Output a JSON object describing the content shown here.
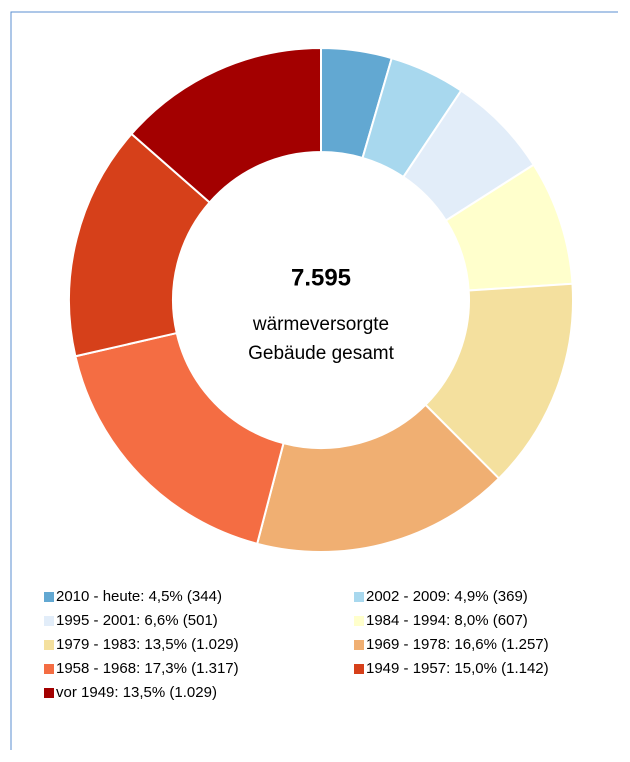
{
  "chart_data": {
    "type": "donut",
    "center_value": "7.595",
    "center_label": [
      "wärmeversorgte",
      "Gebäude gesamt"
    ],
    "categories": [
      "2010 - heute: 4,5% (344)",
      "2002 - 2009: 4,9% (369)",
      "1995 - 2001: 6,6% (501)",
      "1984 - 1994: 8,0% (607)",
      "1979 - 1983: 13,5% (1.029)",
      "1969 - 1978: 16,6% (1.257)",
      "1958 - 1968: 17,3% (1.317)",
      "1949 - 1957: 15,0% (1.142)",
      "vor 1949: 13,5% (1.029)"
    ],
    "values": [
      344,
      369,
      501,
      607,
      1029,
      1257,
      1317,
      1142,
      1029
    ],
    "colors": [
      "#62a8d2",
      "#a8d8ee",
      "#e2edf9",
      "#ffffcc",
      "#f4e09e",
      "#f0af72",
      "#f46d43",
      "#d6401a",
      "#a30000"
    ],
    "legend": "bottom"
  }
}
